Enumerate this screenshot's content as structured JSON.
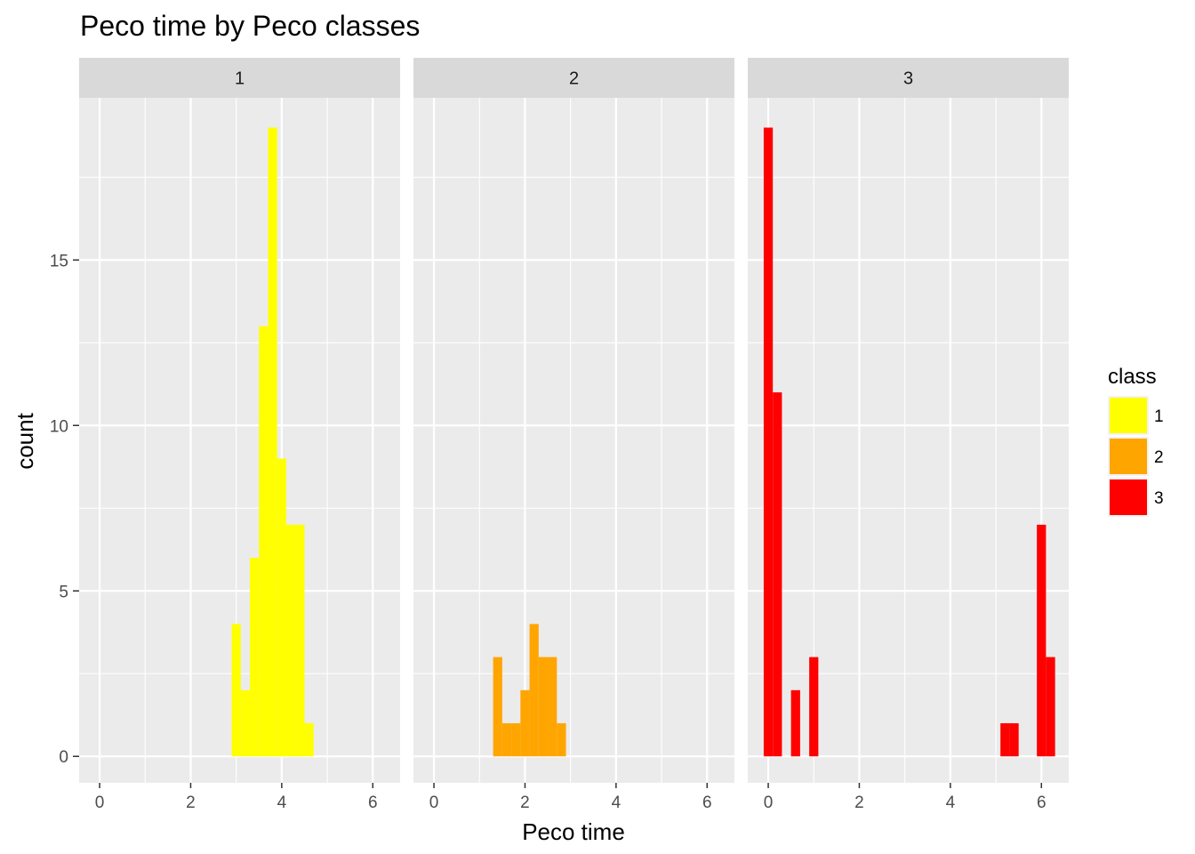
{
  "chart_data": {
    "type": "bar",
    "title": "Peco time by Peco classes",
    "xlabel": "Peco time",
    "ylabel": "count",
    "xlim": [
      -0.45,
      6.6
    ],
    "ylim": [
      -0.8,
      19.9
    ],
    "x_ticks": [
      0,
      2,
      4,
      6
    ],
    "y_ticks": [
      0,
      5,
      10,
      15
    ],
    "bin_width": 0.2,
    "grid": true,
    "legend": {
      "title": "class",
      "position": "right",
      "entries": [
        {
          "label": "1",
          "color": "#FFFF00"
        },
        {
          "label": "2",
          "color": "#FFA500"
        },
        {
          "label": "3",
          "color": "#FF0000"
        }
      ]
    },
    "panels": [
      {
        "label": "1",
        "color": "#FFFF00",
        "bins": [
          {
            "x": 3.0,
            "count": 4
          },
          {
            "x": 3.2,
            "count": 2
          },
          {
            "x": 3.4,
            "count": 6
          },
          {
            "x": 3.6,
            "count": 13
          },
          {
            "x": 3.8,
            "count": 19
          },
          {
            "x": 4.0,
            "count": 9
          },
          {
            "x": 4.2,
            "count": 7
          },
          {
            "x": 4.4,
            "count": 7
          },
          {
            "x": 4.6,
            "count": 1
          }
        ]
      },
      {
        "label": "2",
        "color": "#FFA500",
        "bins": [
          {
            "x": 1.4,
            "count": 3
          },
          {
            "x": 1.6,
            "count": 1
          },
          {
            "x": 1.8,
            "count": 1
          },
          {
            "x": 2.0,
            "count": 2
          },
          {
            "x": 2.2,
            "count": 4
          },
          {
            "x": 2.4,
            "count": 3
          },
          {
            "x": 2.6,
            "count": 3
          },
          {
            "x": 2.8,
            "count": 1
          }
        ]
      },
      {
        "label": "3",
        "color": "#FF0000",
        "bins": [
          {
            "x": 0.0,
            "count": 19
          },
          {
            "x": 0.2,
            "count": 11
          },
          {
            "x": 0.6,
            "count": 2
          },
          {
            "x": 1.0,
            "count": 3
          },
          {
            "x": 5.2,
            "count": 1
          },
          {
            "x": 5.4,
            "count": 1
          },
          {
            "x": 6.0,
            "count": 7
          },
          {
            "x": 6.2,
            "count": 3
          }
        ]
      }
    ]
  }
}
